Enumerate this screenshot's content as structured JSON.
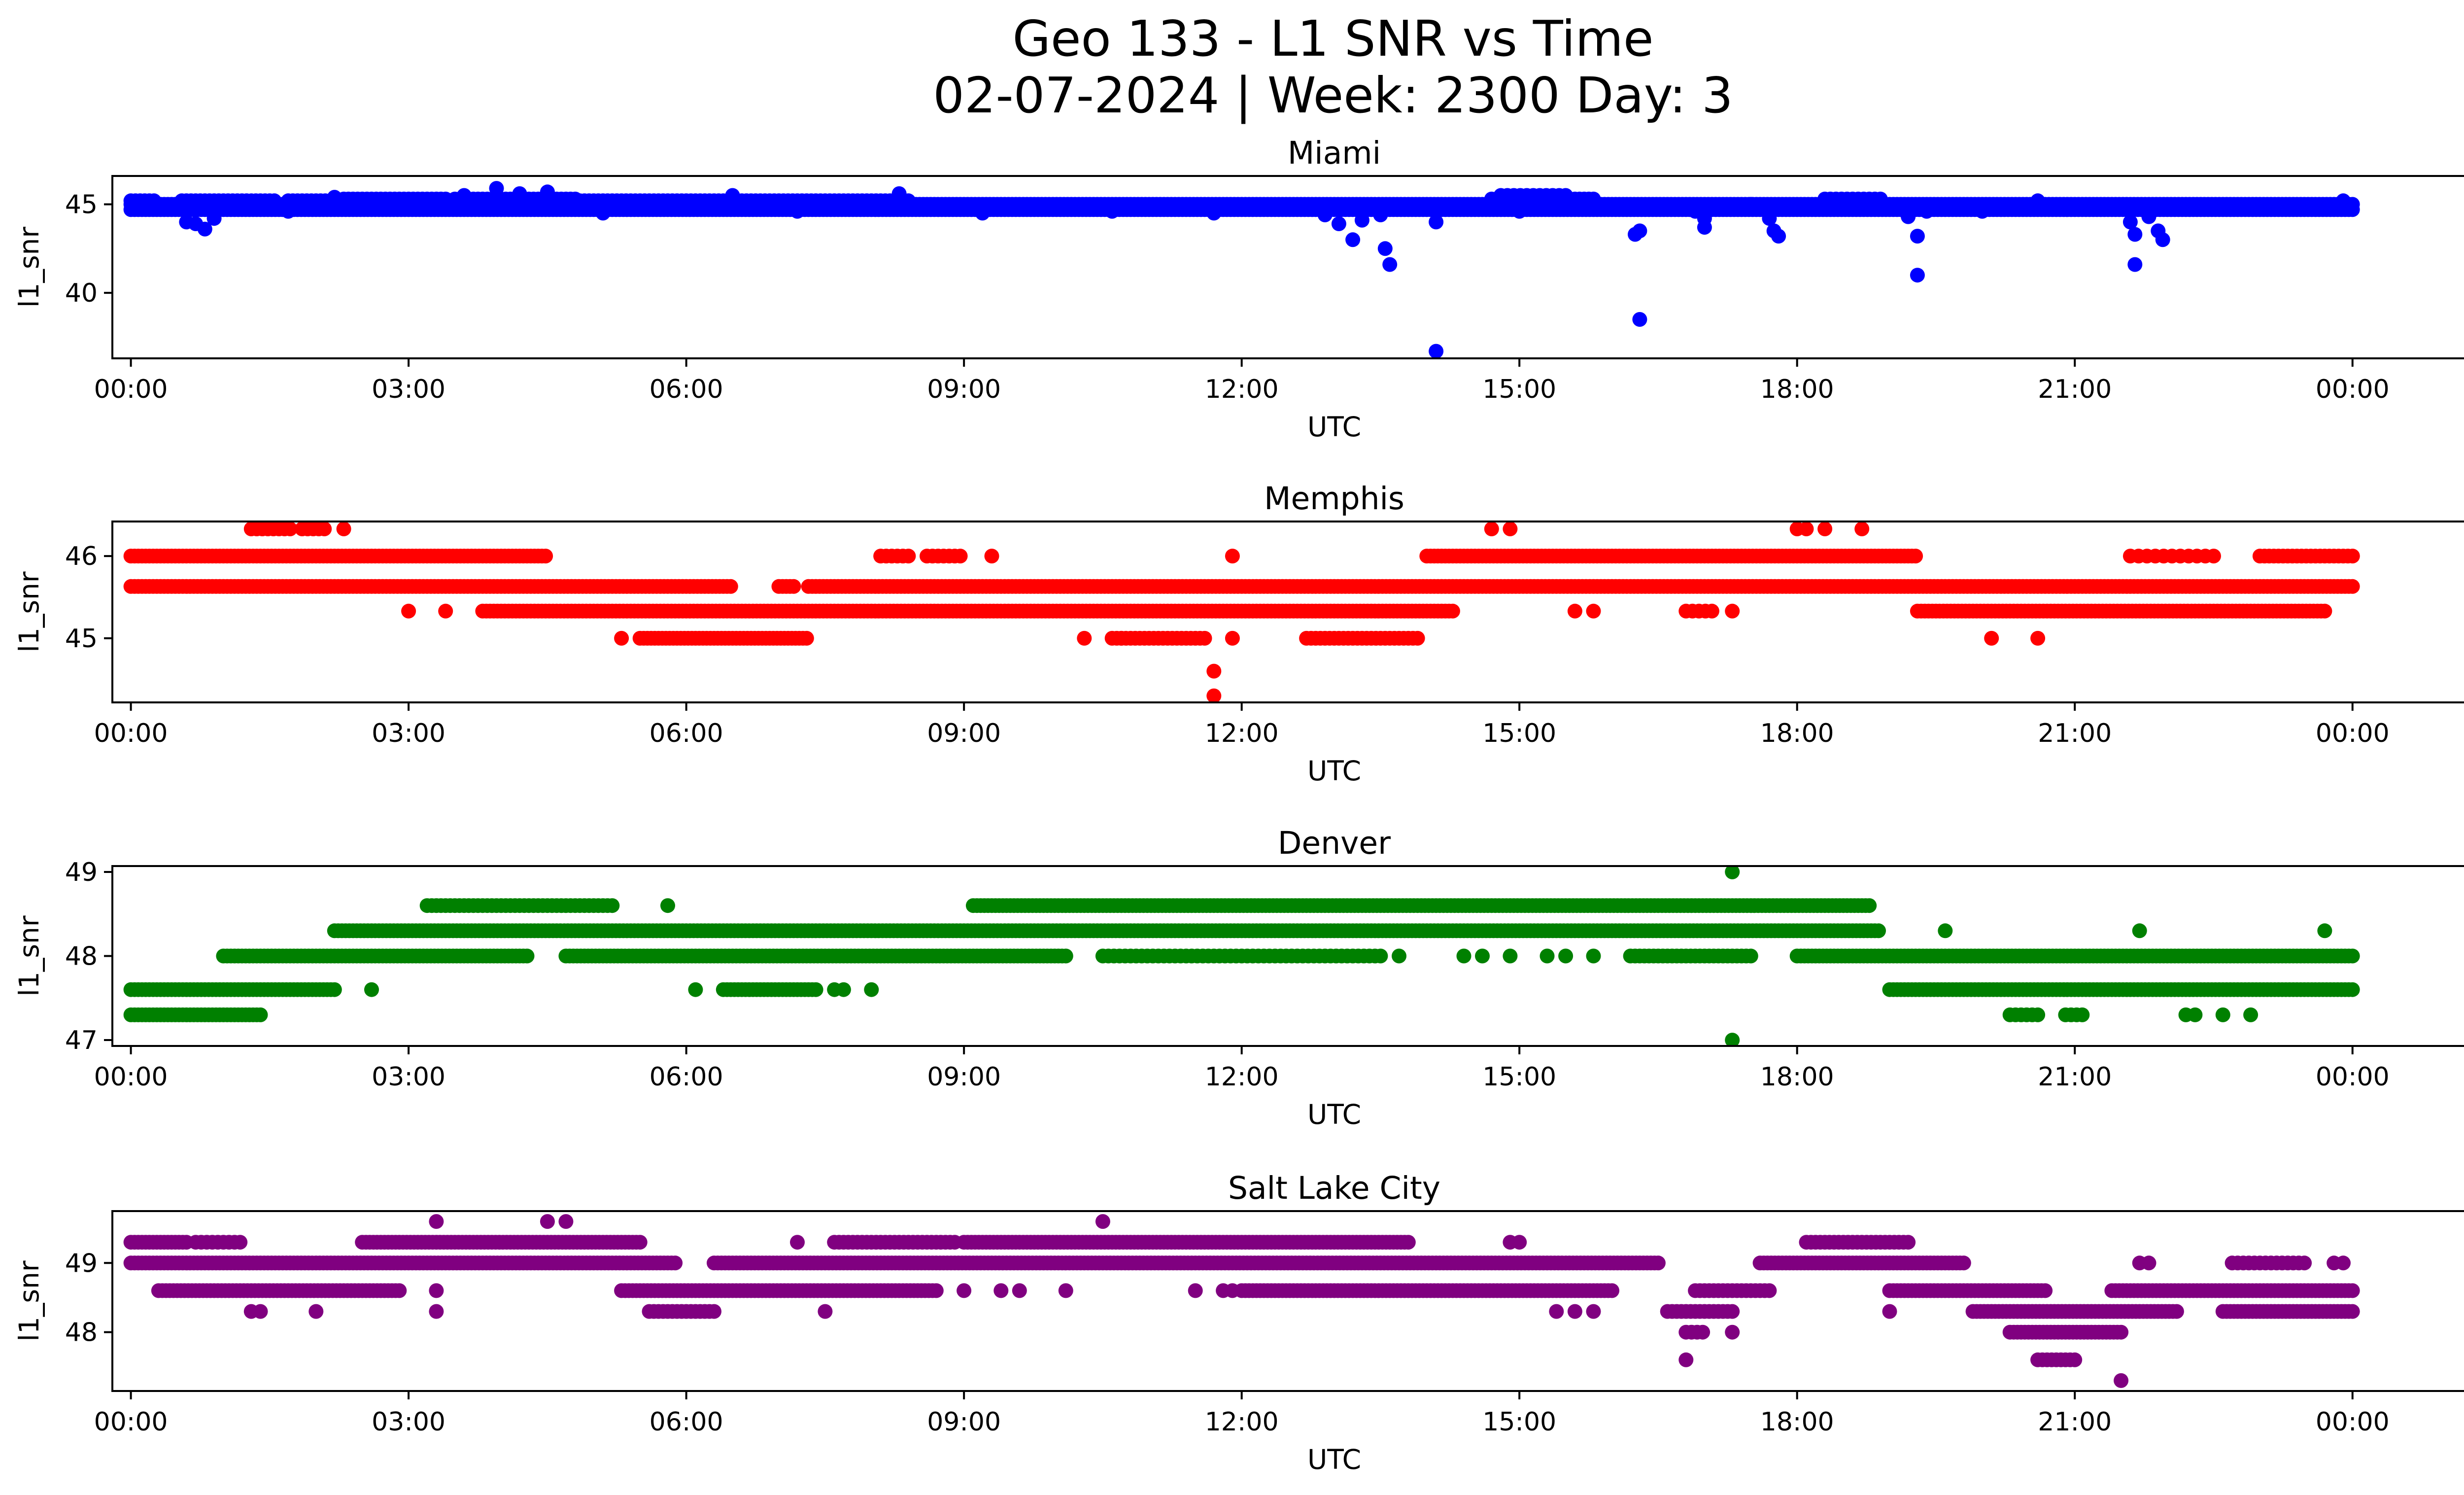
{
  "figure": {
    "title_line1": "Geo 133 - L1 SNR vs Time",
    "title_line2": "02-07-2024 | Week: 2300 Day: 3"
  },
  "chart_data": [
    {
      "type": "scatter",
      "title": "Miami",
      "xlabel": "UTC",
      "ylabel": "l1_snr",
      "color": "#0000ff",
      "xlim": [
        -0.2,
        26.2
      ],
      "ylim": [
        36.3,
        46.6
      ],
      "xticks": [
        0,
        3,
        6,
        9,
        12,
        15,
        18,
        21,
        24
      ],
      "xtick_labels": [
        "00:00",
        "03:00",
        "06:00",
        "09:00",
        "12:00",
        "15:00",
        "18:00",
        "21:00",
        "00:00"
      ],
      "yticks": [
        40,
        45
      ],
      "ytick_labels": [
        "40",
        "45"
      ],
      "bands": [
        {
          "y": 44.7,
          "x0": 0,
          "x1": 24,
          "step": 0.04,
          "skips": []
        },
        {
          "y": 45.0,
          "x0": 0,
          "x1": 24,
          "step": 0.04,
          "skips": []
        },
        {
          "y": 45.2,
          "x0": 0,
          "x1": 8.4,
          "step": 0.05,
          "skips": [
            [
              0.3,
              0.5
            ],
            [
              1.6,
              1.7
            ]
          ]
        },
        {
          "y": 45.3,
          "x0": 2.3,
          "x1": 4.8,
          "step": 0.05,
          "skips": [
            [
              3.4,
              3.45
            ]
          ]
        },
        {
          "y": 45.3,
          "x0": 14.7,
          "x1": 15.8,
          "step": 0.05,
          "skips": []
        },
        {
          "y": 45.3,
          "x0": 18.3,
          "x1": 18.9,
          "step": 0.06,
          "skips": []
        },
        {
          "y": 45.5,
          "x0": 14.8,
          "x1": 15.5,
          "step": 0.07,
          "skips": []
        }
      ],
      "points": [
        [
          0.6,
          44.0
        ],
        [
          0.7,
          43.9
        ],
        [
          0.8,
          43.6
        ],
        [
          0.9,
          44.2
        ],
        [
          1.7,
          44.6
        ],
        [
          2.2,
          45.4
        ],
        [
          3.6,
          45.5
        ],
        [
          3.95,
          45.9
        ],
        [
          4.2,
          45.6
        ],
        [
          4.5,
          45.7
        ],
        [
          5.1,
          44.5
        ],
        [
          6.5,
          45.5
        ],
        [
          7.2,
          44.6
        ],
        [
          8.3,
          45.6
        ],
        [
          9.2,
          44.5
        ],
        [
          10.6,
          44.6
        ],
        [
          11.7,
          44.5
        ],
        [
          12.9,
          44.4
        ],
        [
          13.05,
          43.9
        ],
        [
          13.2,
          43.0
        ],
        [
          13.3,
          44.1
        ],
        [
          13.5,
          44.4
        ],
        [
          13.55,
          42.5
        ],
        [
          13.6,
          41.6
        ],
        [
          14.1,
          44.0
        ],
        [
          14.1,
          36.7
        ],
        [
          15.0,
          44.6
        ],
        [
          15.6,
          45.0
        ],
        [
          16.25,
          43.3
        ],
        [
          16.3,
          43.5
        ],
        [
          16.3,
          38.5
        ],
        [
          16.9,
          44.6
        ],
        [
          17.0,
          44.2
        ],
        [
          17.0,
          43.7
        ],
        [
          17.5,
          45.0
        ],
        [
          17.7,
          44.2
        ],
        [
          17.75,
          43.5
        ],
        [
          17.8,
          43.2
        ],
        [
          19.2,
          44.3
        ],
        [
          19.3,
          43.2
        ],
        [
          19.3,
          41.0
        ],
        [
          19.4,
          44.6
        ],
        [
          20.0,
          44.6
        ],
        [
          20.6,
          45.2
        ],
        [
          21.6,
          44.0
        ],
        [
          21.65,
          43.3
        ],
        [
          21.65,
          41.6
        ],
        [
          21.8,
          44.3
        ],
        [
          21.9,
          43.5
        ],
        [
          21.95,
          43.0
        ],
        [
          23.9,
          45.2
        ]
      ]
    },
    {
      "type": "scatter",
      "title": "Memphis",
      "xlabel": "UTC",
      "ylabel": "l1_snr",
      "color": "#ff0000",
      "xlim": [
        -0.2,
        26.2
      ],
      "ylim": [
        44.22,
        46.42
      ],
      "xticks": [
        0,
        3,
        6,
        9,
        12,
        15,
        18,
        21,
        24
      ],
      "xtick_labels": [
        "00:00",
        "03:00",
        "06:00",
        "09:00",
        "12:00",
        "15:00",
        "18:00",
        "21:00",
        "00:00"
      ],
      "yticks": [
        45,
        46
      ],
      "ytick_labels": [
        "45",
        "46"
      ],
      "bands": [
        {
          "y": 46.0,
          "x0": 0,
          "x1": 4.5,
          "step": 0.04,
          "skips": []
        },
        {
          "y": 46.0,
          "x0": 8.1,
          "x1": 8.4,
          "step": 0.06,
          "skips": []
        },
        {
          "y": 46.0,
          "x0": 8.6,
          "x1": 9.0,
          "step": 0.06,
          "skips": []
        },
        {
          "y": 46.0,
          "x0": 14.0,
          "x1": 19.3,
          "step": 0.04,
          "skips": []
        },
        {
          "y": 46.0,
          "x0": 21.6,
          "x1": 22.5,
          "step": 0.09,
          "skips": []
        },
        {
          "y": 46.0,
          "x0": 23.0,
          "x1": 24,
          "step": 0.05,
          "skips": []
        },
        {
          "y": 46.33,
          "x0": 1.3,
          "x1": 1.75,
          "step": 0.06,
          "skips": []
        },
        {
          "y": 46.33,
          "x0": 1.85,
          "x1": 2.1,
          "step": 0.06,
          "skips": []
        },
        {
          "y": 45.63,
          "x0": 0,
          "x1": 24,
          "step": 0.04,
          "skips": [
            [
              6.5,
              7.0
            ],
            [
              7.2,
              7.3
            ]
          ]
        },
        {
          "y": 45.33,
          "x0": 3.8,
          "x1": 14.3,
          "step": 0.04,
          "skips": []
        },
        {
          "y": 45.33,
          "x0": 19.3,
          "x1": 23.7,
          "step": 0.04,
          "skips": []
        },
        {
          "y": 45.33,
          "x0": 16.8,
          "x1": 17.1,
          "step": 0.07,
          "skips": []
        },
        {
          "y": 45.0,
          "x0": 5.5,
          "x1": 7.3,
          "step": 0.04,
          "skips": []
        },
        {
          "y": 45.0,
          "x0": 10.6,
          "x1": 11.6,
          "step": 0.05,
          "skips": []
        },
        {
          "y": 45.0,
          "x0": 12.7,
          "x1": 13.9,
          "step": 0.05,
          "skips": []
        }
      ],
      "points": [
        [
          2.3,
          46.33
        ],
        [
          5.3,
          45.0
        ],
        [
          9.3,
          46.0
        ],
        [
          10.3,
          45.0
        ],
        [
          10.7,
          45.0
        ],
        [
          11.9,
          45.0
        ],
        [
          11.7,
          44.6
        ],
        [
          11.7,
          44.3
        ],
        [
          11.9,
          46.0
        ],
        [
          14.7,
          46.33
        ],
        [
          14.9,
          46.33
        ],
        [
          18.0,
          46.33
        ],
        [
          18.1,
          46.33
        ],
        [
          18.3,
          46.33
        ],
        [
          18.7,
          46.33
        ],
        [
          3.0,
          45.33
        ],
        [
          3.4,
          45.33
        ],
        [
          15.6,
          45.33
        ],
        [
          15.8,
          45.33
        ],
        [
          17.3,
          45.33
        ],
        [
          20.1,
          45.0
        ],
        [
          20.6,
          45.0
        ]
      ]
    },
    {
      "type": "scatter",
      "title": "Denver",
      "xlabel": "UTC",
      "ylabel": "l1_snr",
      "color": "#008000",
      "xlim": [
        -0.2,
        26.2
      ],
      "ylim": [
        46.93,
        49.07
      ],
      "xticks": [
        0,
        3,
        6,
        9,
        12,
        15,
        18,
        21,
        24
      ],
      "xtick_labels": [
        "00:00",
        "03:00",
        "06:00",
        "09:00",
        "12:00",
        "15:00",
        "18:00",
        "21:00",
        "00:00"
      ],
      "yticks": [
        47,
        48,
        49
      ],
      "ytick_labels": [
        "47",
        "48",
        "49"
      ],
      "bands": [
        {
          "y": 48.6,
          "x0": 3.2,
          "x1": 5.2,
          "step": 0.05,
          "skips": []
        },
        {
          "y": 48.6,
          "x0": 9.1,
          "x1": 18.8,
          "step": 0.04,
          "skips": []
        },
        {
          "y": 48.3,
          "x0": 2.2,
          "x1": 18.9,
          "step": 0.04,
          "skips": []
        },
        {
          "y": 48.0,
          "x0": 1.0,
          "x1": 4.3,
          "step": 0.04,
          "skips": []
        },
        {
          "y": 48.0,
          "x0": 4.7,
          "x1": 10.1,
          "step": 0.04,
          "skips": []
        },
        {
          "y": 48.0,
          "x0": 10.5,
          "x1": 13.5,
          "step": 0.06,
          "skips": []
        },
        {
          "y": 48.0,
          "x0": 16.2,
          "x1": 17.5,
          "step": 0.05,
          "skips": []
        },
        {
          "y": 48.0,
          "x0": 18.0,
          "x1": 24,
          "step": 0.04,
          "skips": []
        },
        {
          "y": 47.6,
          "x0": 0,
          "x1": 2.2,
          "step": 0.04,
          "skips": []
        },
        {
          "y": 47.6,
          "x0": 6.4,
          "x1": 7.4,
          "step": 0.04,
          "skips": []
        },
        {
          "y": 47.6,
          "x0": 19.0,
          "x1": 24,
          "step": 0.04,
          "skips": []
        },
        {
          "y": 47.3,
          "x0": 0,
          "x1": 1.4,
          "step": 0.04,
          "skips": []
        },
        {
          "y": 47.3,
          "x0": 20.3,
          "x1": 20.6,
          "step": 0.06,
          "skips": []
        },
        {
          "y": 47.3,
          "x0": 20.9,
          "x1": 21.1,
          "step": 0.06,
          "skips": []
        }
      ],
      "points": [
        [
          5.8,
          48.6
        ],
        [
          17.3,
          49.0
        ],
        [
          17.3,
          47.0
        ],
        [
          19.6,
          48.3
        ],
        [
          21.7,
          48.3
        ],
        [
          23.7,
          48.3
        ],
        [
          2.6,
          47.6
        ],
        [
          7.6,
          47.6
        ],
        [
          7.7,
          47.6
        ],
        [
          8.0,
          47.6
        ],
        [
          6.1,
          47.6
        ],
        [
          14.4,
          48.0
        ],
        [
          14.6,
          48.0
        ],
        [
          14.9,
          48.0
        ],
        [
          15.3,
          48.0
        ],
        [
          15.5,
          48.0
        ],
        [
          15.8,
          48.0
        ],
        [
          13.7,
          48.0
        ],
        [
          22.2,
          47.3
        ],
        [
          22.3,
          47.3
        ],
        [
          22.6,
          47.3
        ],
        [
          22.9,
          47.3
        ]
      ]
    },
    {
      "type": "scatter",
      "title": "Salt Lake City",
      "xlabel": "UTC",
      "ylabel": "l1_snr",
      "color": "#800080",
      "xlim": [
        -0.2,
        26.2
      ],
      "ylim": [
        47.15,
        49.75
      ],
      "xticks": [
        0,
        3,
        6,
        9,
        12,
        15,
        18,
        21,
        24
      ],
      "xtick_labels": [
        "00:00",
        "03:00",
        "06:00",
        "09:00",
        "12:00",
        "15:00",
        "18:00",
        "21:00",
        "00:00"
      ],
      "yticks": [
        48,
        49
      ],
      "ytick_labels": [
        "48",
        "49"
      ],
      "bands": [
        {
          "y": 49.3,
          "x0": 0,
          "x1": 0.6,
          "step": 0.04,
          "skips": []
        },
        {
          "y": 49.3,
          "x0": 0.7,
          "x1": 1.2,
          "step": 0.06,
          "skips": []
        },
        {
          "y": 49.3,
          "x0": 2.5,
          "x1": 5.5,
          "step": 0.04,
          "skips": []
        },
        {
          "y": 49.3,
          "x0": 7.6,
          "x1": 8.9,
          "step": 0.05,
          "skips": []
        },
        {
          "y": 49.3,
          "x0": 9.0,
          "x1": 13.8,
          "step": 0.04,
          "skips": []
        },
        {
          "y": 49.3,
          "x0": 18.1,
          "x1": 19.2,
          "step": 0.05,
          "skips": []
        },
        {
          "y": 49.0,
          "x0": 0,
          "x1": 5.9,
          "step": 0.04,
          "skips": []
        },
        {
          "y": 49.0,
          "x0": 6.3,
          "x1": 16.5,
          "step": 0.04,
          "skips": []
        },
        {
          "y": 49.0,
          "x0": 17.6,
          "x1": 19.8,
          "step": 0.04,
          "skips": []
        },
        {
          "y": 49.0,
          "x0": 22.7,
          "x1": 23.5,
          "step": 0.06,
          "skips": []
        },
        {
          "y": 48.6,
          "x0": 0.3,
          "x1": 2.9,
          "step": 0.04,
          "skips": []
        },
        {
          "y": 48.6,
          "x0": 5.3,
          "x1": 8.7,
          "step": 0.04,
          "skips": []
        },
        {
          "y": 48.6,
          "x0": 12.0,
          "x1": 16.0,
          "step": 0.04,
          "skips": []
        },
        {
          "y": 48.6,
          "x0": 16.9,
          "x1": 17.7,
          "step": 0.05,
          "skips": []
        },
        {
          "y": 48.6,
          "x0": 19.0,
          "x1": 20.7,
          "step": 0.04,
          "skips": []
        },
        {
          "y": 48.6,
          "x0": 21.4,
          "x1": 24,
          "step": 0.04,
          "skips": []
        },
        {
          "y": 48.3,
          "x0": 5.6,
          "x1": 6.3,
          "step": 0.05,
          "skips": []
        },
        {
          "y": 48.3,
          "x0": 16.6,
          "x1": 17.3,
          "step": 0.05,
          "skips": []
        },
        {
          "y": 48.3,
          "x0": 19.9,
          "x1": 22.1,
          "step": 0.04,
          "skips": []
        },
        {
          "y": 48.3,
          "x0": 22.6,
          "x1": 24,
          "step": 0.04,
          "skips": []
        },
        {
          "y": 48.0,
          "x0": 16.8,
          "x1": 17.0,
          "step": 0.06,
          "skips": []
        },
        {
          "y": 48.0,
          "x0": 20.3,
          "x1": 21.5,
          "step": 0.04,
          "skips": []
        },
        {
          "y": 47.6,
          "x0": 20.6,
          "x1": 21.0,
          "step": 0.05,
          "skips": []
        }
      ],
      "points": [
        [
          3.3,
          49.6
        ],
        [
          4.5,
          49.6
        ],
        [
          4.7,
          49.6
        ],
        [
          10.5,
          49.6
        ],
        [
          7.2,
          49.3
        ],
        [
          14.9,
          49.3
        ],
        [
          15.0,
          49.3
        ],
        [
          21.7,
          49.0
        ],
        [
          21.8,
          49.0
        ],
        [
          23.8,
          49.0
        ],
        [
          23.9,
          49.0
        ],
        [
          21.5,
          47.3
        ],
        [
          16.8,
          47.6
        ],
        [
          1.3,
          48.3
        ],
        [
          1.4,
          48.3
        ],
        [
          2.0,
          48.3
        ],
        [
          3.3,
          48.3
        ],
        [
          3.3,
          48.6
        ],
        [
          7.5,
          48.3
        ],
        [
          9.0,
          48.6
        ],
        [
          9.4,
          48.6
        ],
        [
          9.6,
          48.6
        ],
        [
          10.1,
          48.6
        ],
        [
          11.5,
          48.6
        ],
        [
          11.8,
          48.6
        ],
        [
          11.9,
          48.6
        ],
        [
          15.4,
          48.3
        ],
        [
          15.6,
          48.3
        ],
        [
          15.8,
          48.3
        ],
        [
          17.3,
          48.0
        ],
        [
          19.0,
          48.3
        ]
      ]
    }
  ]
}
